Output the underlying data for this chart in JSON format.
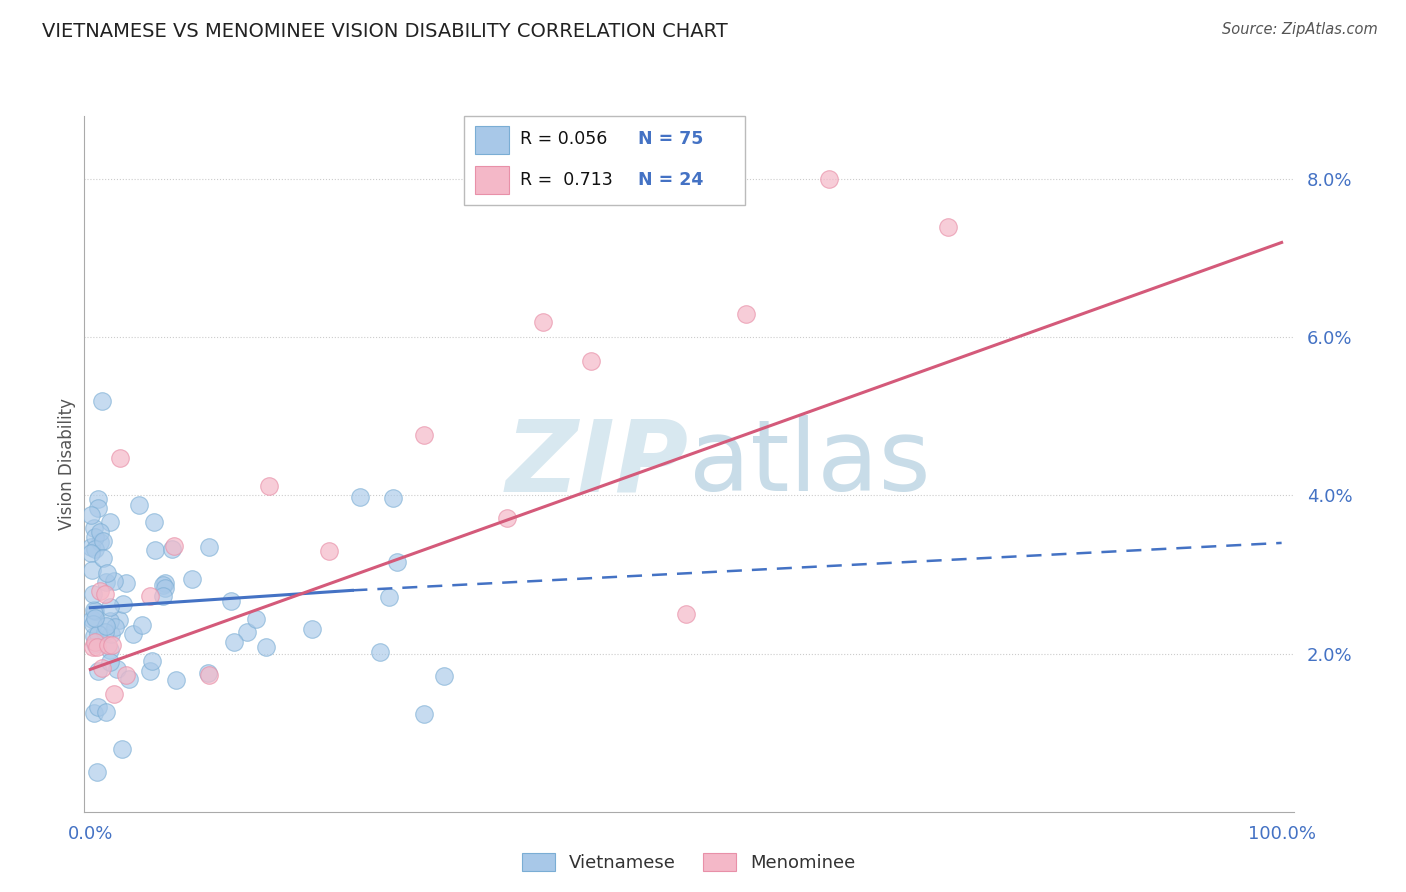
{
  "title": "VIETNAMESE VS MENOMINEE VISION DISABILITY CORRELATION CHART",
  "source": "Source: ZipAtlas.com",
  "ylabel": "Vision Disability",
  "blue_color": "#a8c8e8",
  "blue_edge_color": "#7aadd4",
  "pink_color": "#f4b8c8",
  "pink_edge_color": "#e890a8",
  "blue_line_color": "#4472c4",
  "pink_line_color": "#d45a7a",
  "title_color": "#222222",
  "source_color": "#555555",
  "tick_color": "#4472c4",
  "ylabel_color": "#555555",
  "watermark_color": "#d8e8f0",
  "grid_color": "#cccccc",
  "legend_r1": "R = 0.056",
  "legend_n1": "N = 75",
  "legend_r2": "R =  0.713",
  "legend_n2": "N = 24",
  "x_lim": [
    -0.005,
    1.01
  ],
  "y_lim": [
    0.0,
    0.088
  ],
  "blue_trend_x0": 0.0,
  "blue_trend_y0": 0.0258,
  "blue_trend_x1_solid": 0.22,
  "blue_trend_y1_solid": 0.028,
  "blue_trend_x1_dashed": 1.0,
  "blue_trend_y1_dashed": 0.034,
  "pink_trend_x0": 0.0,
  "pink_trend_y0": 0.018,
  "pink_trend_x1": 1.0,
  "pink_trend_y1": 0.072
}
